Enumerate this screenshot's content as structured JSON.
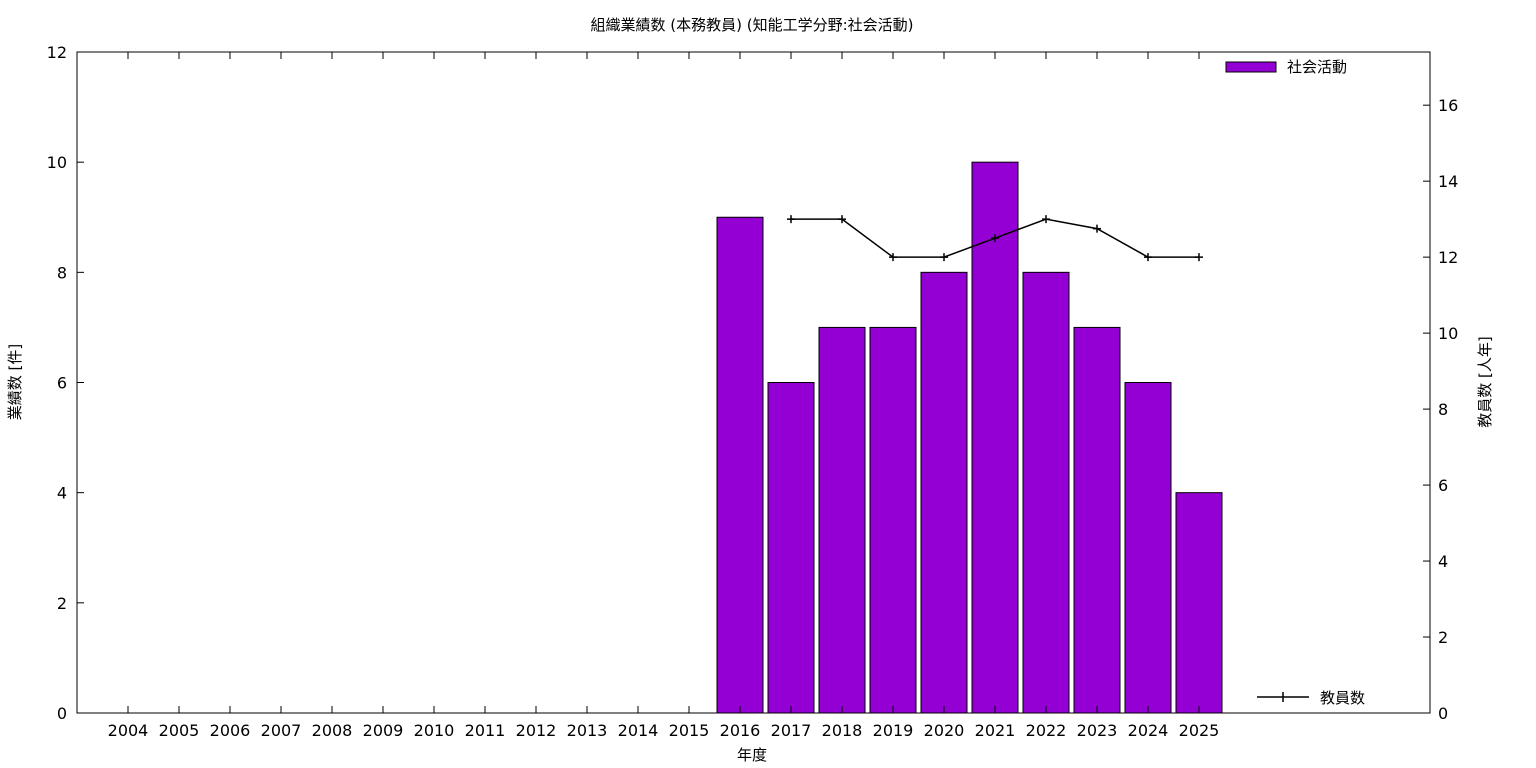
{
  "chart_data": {
    "type": "bar",
    "title": "組織業績数 (本務教員) (知能工学分野:社会活動)",
    "xlabel": "年度",
    "ylabel": "業績数 [件]",
    "y2label": "教員数 [人年]",
    "categories": [
      "2004",
      "2005",
      "2006",
      "2007",
      "2008",
      "2009",
      "2010",
      "2011",
      "2012",
      "2013",
      "2014",
      "2015",
      "2016",
      "2017",
      "2018",
      "2019",
      "2020",
      "2021",
      "2022",
      "2023",
      "2024",
      "2025"
    ],
    "ylim": [
      0,
      12
    ],
    "yticks": [
      0,
      2,
      4,
      6,
      8,
      10,
      12
    ],
    "y2lim": [
      0,
      17.4
    ],
    "y2ticks": [
      0,
      2,
      4,
      6,
      8,
      10,
      12,
      14,
      16
    ],
    "legend_position": "top-right",
    "line_legend_position": "bottom-right",
    "series": [
      {
        "name": "社会活動",
        "type": "bar",
        "axis": "left",
        "color": "#9400d3",
        "values": [
          null,
          null,
          null,
          null,
          null,
          null,
          null,
          null,
          null,
          null,
          null,
          null,
          9,
          6,
          7,
          7,
          8,
          10,
          8,
          7,
          6,
          4
        ]
      },
      {
        "name": "教員数",
        "type": "line",
        "axis": "right",
        "color": "#000000",
        "values": [
          null,
          null,
          null,
          null,
          null,
          null,
          null,
          null,
          null,
          null,
          null,
          null,
          null,
          13,
          13,
          12,
          12,
          12.5,
          13,
          12.75,
          12,
          12
        ]
      }
    ]
  }
}
